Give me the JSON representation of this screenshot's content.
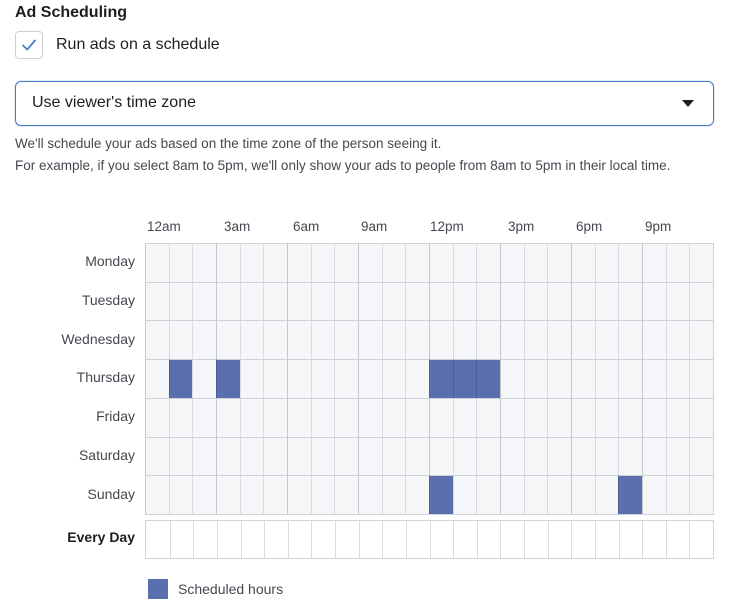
{
  "section": {
    "title": "Ad Scheduling"
  },
  "schedule_toggle": {
    "label": "Run ads on a schedule",
    "checked": true,
    "icon": "checkmark-icon"
  },
  "timezone": {
    "value": "Use viewer's time zone",
    "icon": "caret-down-icon"
  },
  "help": {
    "line1": "We'll schedule your ads based on the time zone of the person seeing it.",
    "line2": "For example, if you select 8am to 5pm, we'll only show your ads to people from 8am to 5pm in their local time."
  },
  "hour_labels": [
    "12am",
    "3am",
    "6am",
    "9am",
    "12pm",
    "3pm",
    "6pm",
    "9pm"
  ],
  "days": [
    "Monday",
    "Tuesday",
    "Wednesday",
    "Thursday",
    "Friday",
    "Saturday",
    "Sunday"
  ],
  "every_day_label": "Every Day",
  "scheduled_hours": {
    "Thursday": [
      1,
      3,
      12,
      13,
      14
    ],
    "Sunday": [
      12,
      20
    ]
  },
  "legend": {
    "label": "Scheduled hours",
    "color": "#5b6fae"
  },
  "colors": {
    "accent": "#4a7cc7",
    "scheduled": "#5b6fae",
    "cell": "#f5f6f7"
  }
}
